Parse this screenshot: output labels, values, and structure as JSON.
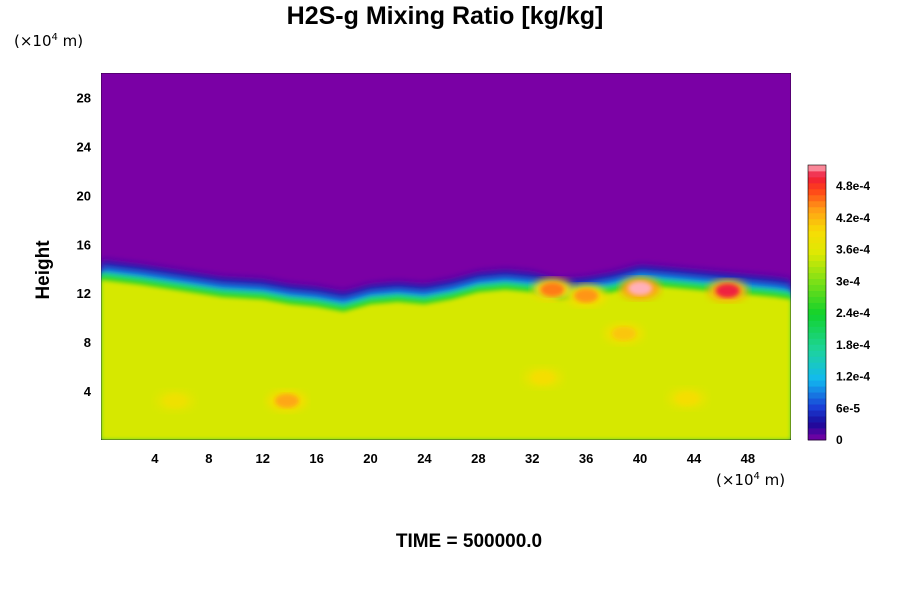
{
  "chart_data": {
    "type": "heatmap",
    "title": "H2S-g Mixing Ratio [kg/kg]",
    "xlabel": "",
    "ylabel": "Height",
    "x_unit": {
      "prefix": "(×10",
      "exp": "4",
      "suffix": " m)"
    },
    "y_unit": {
      "prefix": "(×10",
      "exp": "4",
      "suffix": " m)"
    },
    "xlim": [
      0,
      51.2
    ],
    "ylim": [
      0,
      30
    ],
    "x_ticks": [
      4,
      8,
      12,
      16,
      20,
      24,
      28,
      32,
      36,
      40,
      44,
      48
    ],
    "y_ticks": [
      4,
      8,
      12,
      16,
      20,
      24,
      28
    ],
    "colorbar": {
      "range": [
        0,
        0.00052
      ],
      "tick_values": [
        0,
        6e-05,
        0.00012,
        0.00018,
        0.00024,
        0.0003,
        0.00036,
        0.00042,
        0.00048
      ],
      "tick_labels": [
        "0",
        "6e-5",
        "1.2e-4",
        "1.8e-4",
        "2.4e-4",
        "3e-4",
        "3.6e-4",
        "4.2e-4",
        "4.8e-4"
      ]
    },
    "field": {
      "background_lower_value": 0.00035,
      "background_upper_value": 0,
      "interface_height": [
        [
          0,
          13.0
        ],
        [
          3,
          12.6
        ],
        [
          6,
          12.1
        ],
        [
          9,
          11.6
        ],
        [
          12,
          11.4
        ],
        [
          14,
          11.0
        ],
        [
          16,
          10.8
        ],
        [
          18,
          10.4
        ],
        [
          20,
          11.0
        ],
        [
          22,
          11.2
        ],
        [
          24,
          11.0
        ],
        [
          26,
          11.4
        ],
        [
          28,
          12.0
        ],
        [
          30,
          12.2
        ],
        [
          32,
          12.0
        ],
        [
          34,
          11.4
        ],
        [
          36,
          11.6
        ],
        [
          38,
          12.0
        ],
        [
          40,
          12.6
        ],
        [
          42,
          12.4
        ],
        [
          44,
          12.2
        ],
        [
          46,
          12.0
        ],
        [
          48,
          11.8
        ],
        [
          50,
          11.6
        ],
        [
          51.2,
          11.4
        ]
      ],
      "plumes": [
        {
          "x": 33.5,
          "y": 12.3,
          "value": 0.00045
        },
        {
          "x": 36.0,
          "y": 11.8,
          "value": 0.00044
        },
        {
          "x": 40.0,
          "y": 12.4,
          "value": 0.00052
        },
        {
          "x": 46.5,
          "y": 12.2,
          "value": 0.0005
        },
        {
          "x": 38.8,
          "y": 8.7,
          "value": 0.00041
        },
        {
          "x": 13.8,
          "y": 3.2,
          "value": 0.00043
        },
        {
          "x": 32.8,
          "y": 5.1,
          "value": 0.00039
        },
        {
          "x": 43.5,
          "y": 3.4,
          "value": 0.00039
        },
        {
          "x": 5.5,
          "y": 3.2,
          "value": 0.00038
        }
      ]
    }
  },
  "footer": {
    "time_label": "TIME = 500000.0"
  }
}
